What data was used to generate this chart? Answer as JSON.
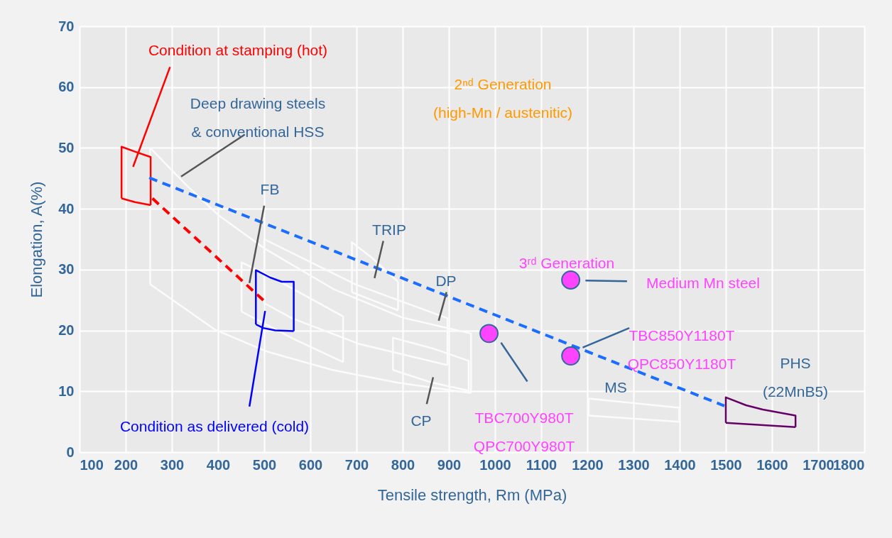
{
  "chart_data": {
    "type": "line",
    "xlabel": "Tensile strength, Rm (MPa)",
    "ylabel": "Elongation, A(%)",
    "xlim": [
      100,
      1800
    ],
    "xticks": [
      100,
      200,
      300,
      400,
      500,
      600,
      700,
      800,
      900,
      1000,
      1100,
      1200,
      1300,
      1400,
      1500,
      1600,
      1700,
      1800
    ],
    "ylim": [
      0,
      70
    ],
    "yticks": [
      0,
      10,
      20,
      30,
      40,
      50,
      60,
      70
    ],
    "grid": true,
    "marker": "none",
    "series": [
      {
        "color": "#fbfbfb",
        "x": [
          253,
          253,
          330,
          400,
          500,
          650,
          800,
          948,
          948
        ],
        "values": [
          27.6,
          50,
          44,
          39,
          33.5,
          26.8,
          22.1,
          19.5,
          9.7
        ]
      },
      {
        "color": "#fbfbfb",
        "x": [
          253,
          394,
          507,
          648,
          790,
          948
        ],
        "values": [
          27.6,
          20.1,
          16.5,
          13.5,
          11.4,
          9.7
        ]
      },
      {
        "color": "#fbfbfb",
        "x": [
          451,
          451,
          513,
          671,
          671
        ],
        "values": [
          23.1,
          31.2,
          28.9,
          22.3,
          14.8
        ]
      },
      {
        "color": "#fbfbfb",
        "x": [
          451,
          564,
          671
        ],
        "values": [
          23.1,
          18.6,
          14.8
        ]
      },
      {
        "color": "#fbfbfb",
        "x": [
          690,
          690,
          734,
          790,
          790
        ],
        "values": [
          26.3,
          34.5,
          31.9,
          28,
          23.3
        ]
      },
      {
        "color": "#fbfbfb",
        "x": [
          690,
          790
        ],
        "values": [
          26.3,
          23.3
        ]
      },
      {
        "color": "#fbfbfb",
        "x": [
          500,
          500,
          700,
          897,
          897
        ],
        "values": [
          24.5,
          35,
          27.5,
          22,
          14.3
        ]
      },
      {
        "color": "#fbfbfb",
        "x": [
          500,
          560,
          705,
          897
        ],
        "values": [
          24.5,
          22,
          17.8,
          14.3
        ]
      },
      {
        "color": "#fbfbfb",
        "x": [
          779,
          779,
          863,
          943,
          943
        ],
        "values": [
          13.5,
          18.8,
          17.1,
          15,
          10.1
        ]
      },
      {
        "color": "#fbfbfb",
        "x": [
          779,
          860,
          943
        ],
        "values": [
          13.5,
          11.5,
          10.1
        ]
      },
      {
        "color": "#fbfbfb",
        "x": [
          1203,
          1203,
          1399,
          1399
        ],
        "values": [
          6,
          8.8,
          7.3,
          5
        ]
      },
      {
        "color": "#fbfbfb",
        "x": [
          1203,
          1399
        ],
        "values": [
          6,
          5
        ]
      },
      {
        "color": "#ff0000",
        "x": [
          191,
          191,
          220,
          254,
          254
        ],
        "values": [
          41.7,
          50.2,
          49.4,
          48.5,
          40.6
        ]
      },
      {
        "color": "#ff0000",
        "x": [
          191,
          220,
          254
        ],
        "values": [
          41.7,
          41.1,
          40.6
        ]
      },
      {
        "color": "#0000ff",
        "x": [
          482,
          482,
          513,
          538,
          564,
          564
        ],
        "values": [
          21,
          29.9,
          28.7,
          28,
          28,
          19.9
        ]
      },
      {
        "color": "#0000ff",
        "x": [
          482,
          498,
          524,
          564
        ],
        "values": [
          21,
          20.4,
          20,
          19.9
        ]
      },
      {
        "color": "#660066",
        "x": [
          1500,
          1500,
          1544,
          1580,
          1651,
          1651
        ],
        "values": [
          4.8,
          9,
          7.7,
          7,
          6,
          4.1
        ]
      },
      {
        "color": "#660066",
        "x": [
          1500,
          1651
        ],
        "values": [
          4.8,
          4.1
        ]
      },
      {
        "color": "#1a6dff",
        "line_style": "dashed",
        "x": [
          251,
          1497
        ],
        "values": [
          45.1,
          7.6
        ]
      },
      {
        "color": "#ff0000",
        "line_style": "dashed",
        "x": [
          258,
          502
        ],
        "values": [
          41.7,
          24.7
        ]
      },
      {
        "color": "#ff0000",
        "x": [
          216,
          296
        ],
        "values": [
          46.9,
          63.3
        ]
      },
      {
        "color": "#555555",
        "x": [
          320,
          458
        ],
        "values": [
          45.3,
          52.2
        ]
      },
      {
        "color": "#555555",
        "x": [
          468,
          500
        ],
        "values": [
          27.8,
          40.5
        ]
      },
      {
        "color": "#555555",
        "x": [
          739,
          758
        ],
        "values": [
          28.6,
          34.7
        ]
      },
      {
        "color": "#555555",
        "x": [
          878,
          895
        ],
        "values": [
          21.6,
          26.3
        ]
      },
      {
        "color": "#555555",
        "x": [
          852,
          866
        ],
        "values": [
          7.9,
          12.3
        ]
      },
      {
        "color": "#0000ff",
        "x": [
          468,
          502
        ],
        "values": [
          7.5,
          23.2
        ]
      },
      {
        "color": "#336699",
        "x": [
          1013,
          1070
        ],
        "values": [
          18,
          11.6
        ]
      },
      {
        "color": "#336699",
        "x": [
          1196,
          1286
        ],
        "values": [
          28.2,
          28.1
        ]
      },
      {
        "color": "#336699",
        "x": [
          1190,
          1291
        ],
        "values": [
          17.2,
          20.4
        ]
      },
      {
        "type": "scatter",
        "marker": "circle",
        "color": "#ff44ff",
        "x": [
          987,
          1164,
          1164
        ],
        "values": [
          19.5,
          28.3,
          15.8
        ]
      }
    ],
    "annotations": [
      "Condition at stamping (hot)",
      "Deep drawing steels\n& conventional HSS",
      "FB",
      "TRIP",
      "DP",
      "CP",
      "MS",
      "PHS\n(22MnB5)",
      "2ⁿᵈ Generation\n(high-Mn / austenitic)",
      "3ʳᵈ Generation",
      "Medium Mn steel",
      "TBC850Y1180T\nQPC850Y1180T",
      "TBC700Y980T\nQPC700Y980T",
      "Condition as delivered (cold)"
    ]
  }
}
